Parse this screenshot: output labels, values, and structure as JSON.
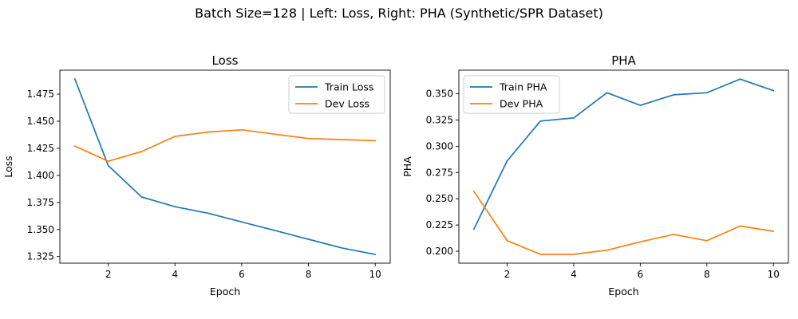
{
  "suptitle": "Batch Size=128 | Left: Loss, Right: PHA (Synthetic/SPR Dataset)",
  "colors": {
    "train": "#1f77b4",
    "dev": "#ff7f0e"
  },
  "chart_data": [
    {
      "type": "line",
      "title": "Loss",
      "xlabel": "Epoch",
      "ylabel": "Loss",
      "x": [
        1,
        2,
        3,
        4,
        5,
        6,
        7,
        8,
        9,
        10
      ],
      "xticks": [
        "2",
        "4",
        "6",
        "8",
        "10"
      ],
      "yticks": [
        "1.325",
        "1.350",
        "1.375",
        "1.400",
        "1.425",
        "1.450",
        "1.475"
      ],
      "xlim": [
        0.55,
        10.45
      ],
      "ylim": [
        1.3189,
        1.4971
      ],
      "legend": "upper right",
      "series": [
        {
          "name": "Train Loss",
          "color": "#1f77b4",
          "values": [
            1.489,
            1.409,
            1.38,
            1.371,
            1.365,
            1.357,
            1.349,
            1.341,
            1.333,
            1.327
          ]
        },
        {
          "name": "Dev Loss",
          "color": "#ff7f0e",
          "values": [
            1.427,
            1.413,
            1.422,
            1.436,
            1.44,
            1.442,
            1.438,
            1.434,
            1.433,
            1.432
          ]
        }
      ]
    },
    {
      "type": "line",
      "title": "PHA",
      "xlabel": "Epoch",
      "ylabel": "PHA",
      "x": [
        1,
        2,
        3,
        4,
        5,
        6,
        7,
        8,
        9,
        10
      ],
      "xticks": [
        "2",
        "4",
        "6",
        "8",
        "10"
      ],
      "yticks": [
        "0.200",
        "0.225",
        "0.250",
        "0.275",
        "0.300",
        "0.325",
        "0.350"
      ],
      "xlim": [
        0.55,
        10.45
      ],
      "ylim": [
        0.1886,
        0.3725
      ],
      "legend": "upper left",
      "series": [
        {
          "name": "Train PHA",
          "color": "#1f77b4",
          "values": [
            0.221,
            0.286,
            0.324,
            0.327,
            0.351,
            0.339,
            0.349,
            0.351,
            0.364,
            0.353
          ]
        },
        {
          "name": "Dev PHA",
          "color": "#ff7f0e",
          "values": [
            0.257,
            0.21,
            0.197,
            0.197,
            0.201,
            0.209,
            0.216,
            0.21,
            0.224,
            0.219
          ]
        }
      ]
    }
  ]
}
